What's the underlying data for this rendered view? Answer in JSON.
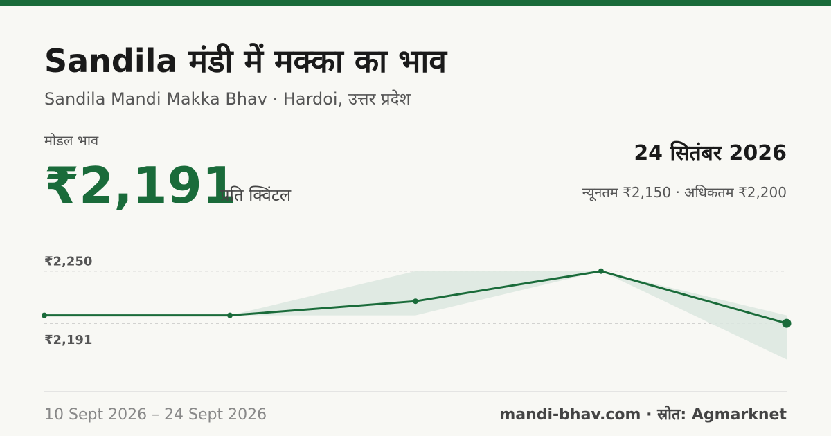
{
  "header": {
    "title": "Sandila मंडी में मक्का का भाव",
    "subtitle": "Sandila Mandi Makka Bhav · Hardoi, उत्तर प्रदेश",
    "modal_label": "मोडल भाव",
    "modal_price": "₹2,191",
    "unit": "प्रति क्विंटल",
    "date": "24 सितंबर 2026",
    "min_max": "न्यूनतम ₹2,150 · अधिकतम ₹2,200"
  },
  "chart_data": {
    "type": "line",
    "categories": [
      null,
      null,
      null,
      null,
      null
    ],
    "series": [
      {
        "name": "मोडल भाव",
        "color": "#1a6b3a",
        "values": [
          2200,
          2200,
          2216,
          2250,
          2191
        ]
      },
      {
        "name": "न्यूनतम",
        "color": "#dce8df",
        "values": [
          2200,
          2200,
          2200,
          2250,
          2150
        ]
      },
      {
        "name": "अधिकतम",
        "color": "#dce8df",
        "values": [
          2200,
          2200,
          2250,
          2250,
          2200
        ]
      }
    ],
    "ylim": [
      2134,
      2267
    ],
    "yticks": [
      {
        "value": 2191,
        "label": "₹2,191"
      },
      {
        "value": 2250,
        "label": "₹2,250"
      }
    ],
    "grid": true
  },
  "footer": {
    "date_range": "10 Sept 2026 – 24 Sept 2026",
    "source": "mandi-bhav.com · स्रोत: Agmarknet"
  }
}
